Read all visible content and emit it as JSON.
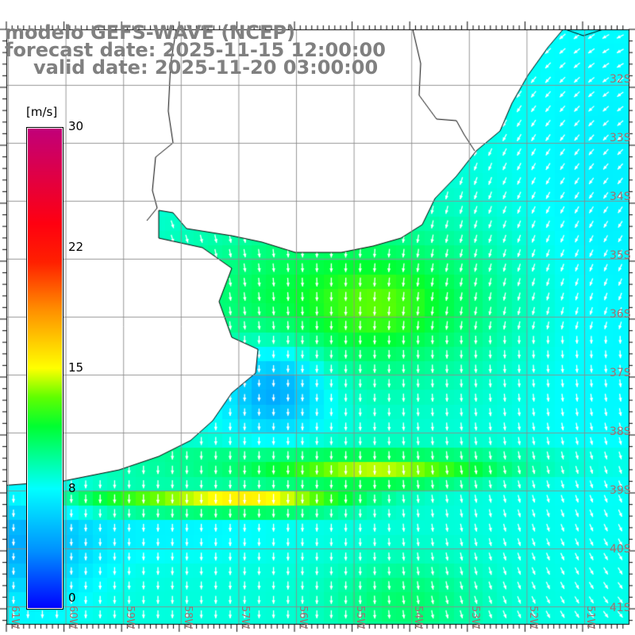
{
  "title": {
    "model": "modelo GEFS-WAVE (NCEP)",
    "forecast": "forecast date: 2025-11-15 12:00:00",
    "valid": "valid date: 2025-11-20 03:00:00"
  },
  "colorbar": {
    "unit": "[m/s]",
    "labels": [
      "30",
      "22",
      "15",
      "8",
      "0"
    ],
    "colors": [
      "#0000ff",
      "#0090ff",
      "#00ffff",
      "#00ff30",
      "#60ff00",
      "#ffff00",
      "#ff9000",
      "#ff2000",
      "#ff0010",
      "#c0007a"
    ]
  },
  "lat_labels": [
    "32S",
    "33S",
    "34S",
    "35S",
    "36S",
    "37S",
    "38S",
    "39S",
    "40S",
    "41S"
  ],
  "lon_labels": [
    "61W",
    "60W",
    "59W",
    "58W",
    "57W",
    "56W",
    "55W",
    "54W",
    "53W",
    "52W",
    "51W"
  ]
}
